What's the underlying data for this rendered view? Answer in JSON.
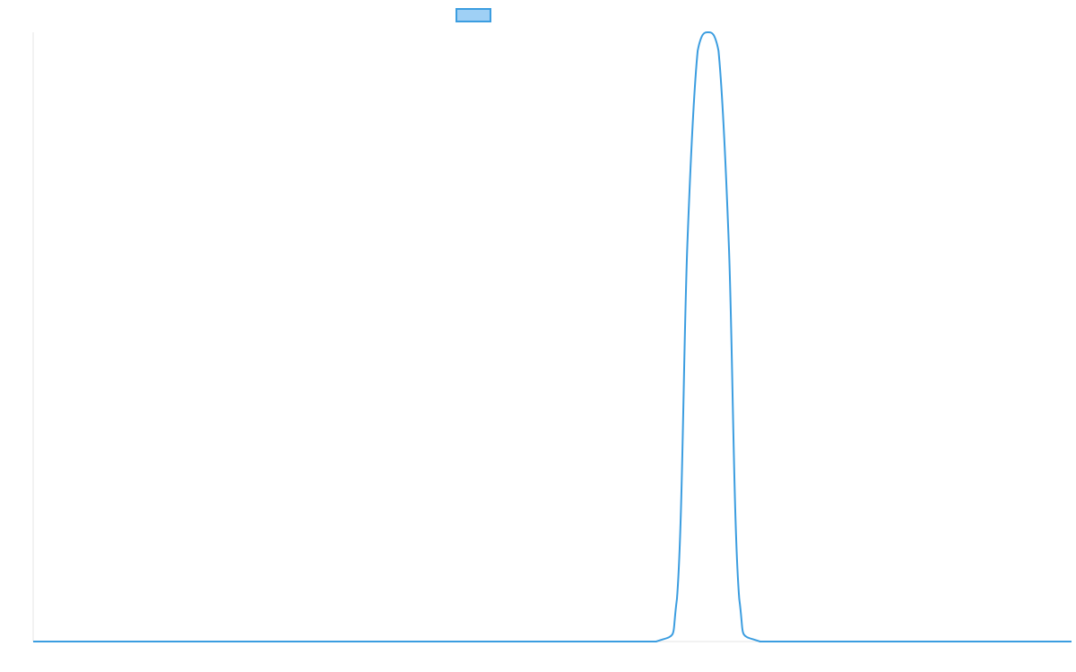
{
  "chart_data": {
    "type": "line",
    "title": "",
    "xlabel": "",
    "ylabel": "",
    "x": [
      0,
      50,
      60,
      62,
      63,
      64,
      65,
      66,
      67,
      68,
      70,
      80,
      100
    ],
    "xlim": [
      0,
      100
    ],
    "ylim": [
      0,
      1
    ],
    "series": [
      {
        "name": "",
        "values": [
          0,
          0,
          0,
          0.07,
          0.65,
          0.97,
          1.0,
          0.97,
          0.65,
          0.07,
          0,
          0,
          0
        ]
      }
    ],
    "legend_position": "top-center",
    "grid": false,
    "colors": {
      "line": "#3b9de0",
      "legend_fill": "#9fd0f5",
      "axis": "#e6e6e6"
    }
  }
}
